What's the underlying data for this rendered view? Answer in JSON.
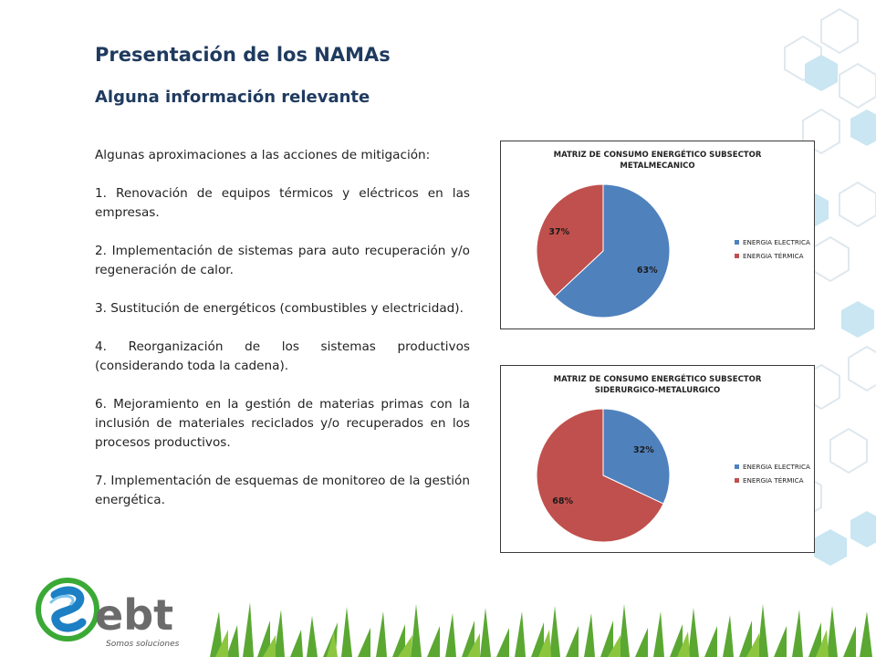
{
  "slide": {
    "title": "Presentación de los NAMAs",
    "subtitle": "Alguna información relevante",
    "paragraphs": [
      "Algunas aproximaciones a las acciones de mitigación:",
      "1. Renovación de equipos térmicos y eléctricos en las empresas.",
      "2. Implementación de sistemas para auto recuperación y/o regeneración de calor.",
      "3. Sustitución de energéticos (combustibles y electricidad).",
      "4. Reorganización de los sistemas productivos (considerando toda la cadena).",
      "6. Mejoramiento en la gestión de materias primas con la inclusión de materiales reciclados y/o recuperados en los procesos productivos.",
      "7. Implementación de esquemas de monitoreo de la gestión energética."
    ]
  },
  "logo": {
    "name": "ebt",
    "tagline": "Somos soluciones",
    "colors": {
      "green": "#3aa935",
      "blue": "#1d7fc4",
      "gray": "#6b6b6b"
    }
  },
  "chart_data": [
    {
      "type": "pie",
      "title_lines": [
        "MATRIZ DE CONSUMO ENERGÉTICO SUBSECTOR",
        "METALMECANICO"
      ],
      "categories": [
        "ENERGIA ELECTRICA",
        "ENERGIA TÉRMICA"
      ],
      "values": [
        63,
        37
      ],
      "labels": [
        "63%",
        "37%"
      ],
      "colors": [
        "#4f81bd",
        "#c0504d"
      ],
      "legend": "right"
    },
    {
      "type": "pie",
      "title_lines": [
        "MATRIZ DE CONSUMO ENERGÉTICO SUBSECTOR",
        "SIDERURGICO-METALURGICO"
      ],
      "categories": [
        "ENERGIA ELECTRICA",
        "ENERGIA TÉRMICA"
      ],
      "values": [
        32,
        68
      ],
      "labels": [
        "32%",
        "68%"
      ],
      "colors": [
        "#4f81bd",
        "#c0504d"
      ],
      "legend": "right"
    }
  ]
}
